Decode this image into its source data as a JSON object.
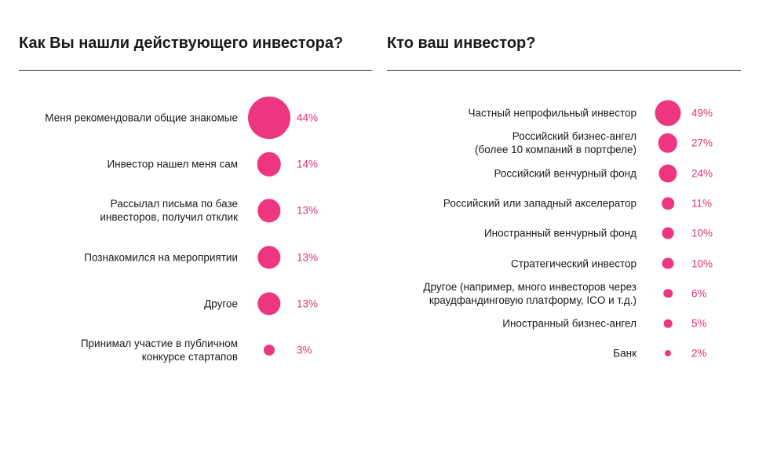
{
  "colors": {
    "bubble": "#ee3580",
    "percent_text": "#e0307a",
    "divider": "#333333"
  },
  "chart_data": [
    {
      "type": "bubble",
      "title": "Как Вы нашли действующего инвестора?",
      "unit": "%",
      "categories": [
        "Меня рекомендовали общие знакомые",
        "Инвестор нашел меня сам",
        "Рассылал письма по базе\nинвесторов, получил отклик",
        "Познакомился на мероприятии",
        "Другое",
        "Принимал участие в публичном\nконкурсе стартапов"
      ],
      "values": [
        44,
        14,
        13,
        13,
        13,
        3
      ],
      "value_labels": [
        "44%",
        "14%",
        "13%",
        "13%",
        "13%",
        "3%"
      ]
    },
    {
      "type": "bubble",
      "title": "Кто ваш инвестор?",
      "unit": "%",
      "categories": [
        "Частный непрофильный инвестор",
        "Российский бизнес-ангел\n(более 10 компаний в портфеле)",
        "Российский венчурный фонд",
        "Российский или западный акселератор",
        "Иностранный венчурный фонд",
        "Стратегический инвестор",
        "Другое (например, много инвесторов через\nкраудфандинговую платформу, ICO и т.д.)",
        "Иностранный бизнес-ангел",
        "Банк"
      ],
      "values": [
        49,
        27,
        24,
        11,
        10,
        10,
        6,
        5,
        2
      ],
      "value_labels": [
        "49%",
        "27%",
        "24%",
        "11%",
        "10%",
        "10%",
        "6%",
        "5%",
        "2%"
      ]
    }
  ]
}
